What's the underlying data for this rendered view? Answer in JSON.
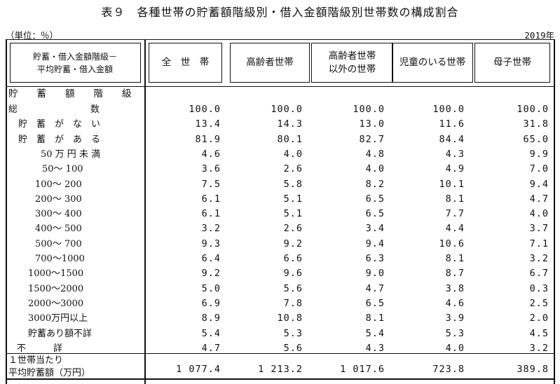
{
  "title": "表９　各種世帯の貯蓄額階級別・借入金額階級別世帯数の構成割合",
  "unit": "（単位：％）",
  "year": "2019年",
  "header": {
    "stub": "貯蓄・借入金額階級－\n平均貯蓄・借入金額",
    "columns": [
      "全　世　帯",
      "高齢者世帯",
      "高齢者世帯\n以外の世帯",
      "児童のいる世帯",
      "母子世帯"
    ]
  },
  "section_label": "貯　　蓄　　額　　階　　級",
  "rows": [
    {
      "label": "総　　　　　　　　数",
      "values": [
        "100.0",
        "100.0",
        "100.0",
        "100.0",
        "100.0"
      ]
    },
    {
      "label": "貯　蓄　が　な　い",
      "values": [
        "13.4",
        "14.3",
        "13.0",
        "11.6",
        "31.8"
      ]
    },
    {
      "label": "貯　蓄　が　あ　る",
      "values": [
        "81.9",
        "80.1",
        "82.7",
        "84.4",
        "65.0"
      ]
    },
    {
      "label": "50 万 円 未 満",
      "values": [
        "4.6",
        "4.0",
        "4.8",
        "4.3",
        "9.9"
      ]
    },
    {
      "label": "50～ 100",
      "values": [
        "3.6",
        "2.6",
        "4.0",
        "4.9",
        "7.0"
      ]
    },
    {
      "label": "100～ 200",
      "values": [
        "7.5",
        "5.8",
        "8.2",
        "10.1",
        "9.4"
      ]
    },
    {
      "label": "200～ 300",
      "values": [
        "6.1",
        "5.1",
        "6.5",
        "8.1",
        "4.7"
      ]
    },
    {
      "label": "300～ 400",
      "values": [
        "6.1",
        "5.1",
        "6.5",
        "7.7",
        "4.0"
      ]
    },
    {
      "label": "400～ 500",
      "values": [
        "3.2",
        "2.6",
        "3.4",
        "4.4",
        "3.7"
      ]
    },
    {
      "label": "500～ 700",
      "values": [
        "9.3",
        "9.2",
        "9.4",
        "10.6",
        "7.1"
      ]
    },
    {
      "label": "700～1000",
      "values": [
        "6.4",
        "6.6",
        "6.3",
        "8.1",
        "3.2"
      ]
    },
    {
      "label": "1000～1500",
      "values": [
        "9.2",
        "9.6",
        "9.0",
        "8.7",
        "6.7"
      ]
    },
    {
      "label": "1500～2000",
      "values": [
        "5.0",
        "5.6",
        "4.7",
        "3.8",
        "0.3"
      ]
    },
    {
      "label": "2000～3000",
      "values": [
        "6.9",
        "7.8",
        "6.5",
        "4.6",
        "2.5"
      ]
    },
    {
      "label": "3000万円以上",
      "values": [
        "8.9",
        "10.8",
        "8.1",
        "3.9",
        "2.0"
      ]
    },
    {
      "label": "貯蓄あり額不詳",
      "values": [
        "5.4",
        "5.3",
        "5.4",
        "5.3",
        "4.5"
      ]
    },
    {
      "label": "不　　　詳",
      "values": [
        "4.7",
        "5.6",
        "4.3",
        "4.0",
        "3.2"
      ]
    }
  ],
  "average": {
    "label": "１世帯当たり\n平均貯蓄額（万円）",
    "values": [
      "1 077.4",
      "1 213.2",
      "1 017.6",
      "723.8",
      "389.8"
    ]
  }
}
